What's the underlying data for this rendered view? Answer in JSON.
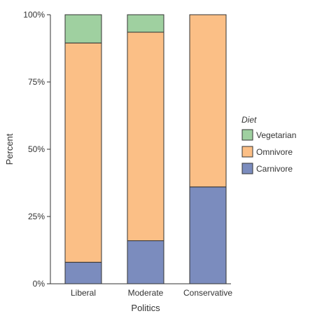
{
  "chart_data": {
    "type": "bar",
    "stacked": true,
    "categories": [
      "Liberal",
      "Moderate",
      "Conservative"
    ],
    "series": [
      {
        "name": "Carnivore",
        "values": [
          8,
          16,
          36
        ],
        "color": "#7b8cbe"
      },
      {
        "name": "Omnivore",
        "values": [
          81.5,
          77.5,
          64
        ],
        "color": "#fbbf86"
      },
      {
        "name": "Vegetarian",
        "values": [
          10.5,
          6.5,
          0
        ],
        "color": "#9fd0a0"
      }
    ],
    "xlabel": "Politics",
    "ylabel": "Percent",
    "ylim": [
      0,
      100
    ],
    "yticks": [
      "0%",
      "25%",
      "50%",
      "75%",
      "100%"
    ],
    "ytick_values": [
      0,
      25,
      50,
      75,
      100
    ],
    "legend": {
      "title": "Diet",
      "placement": "right",
      "entries": [
        "Vegetarian",
        "Omnivore",
        "Carnivore"
      ]
    },
    "grid": false,
    "bar_outline_color": "#333333",
    "axis_color": "#333333"
  }
}
